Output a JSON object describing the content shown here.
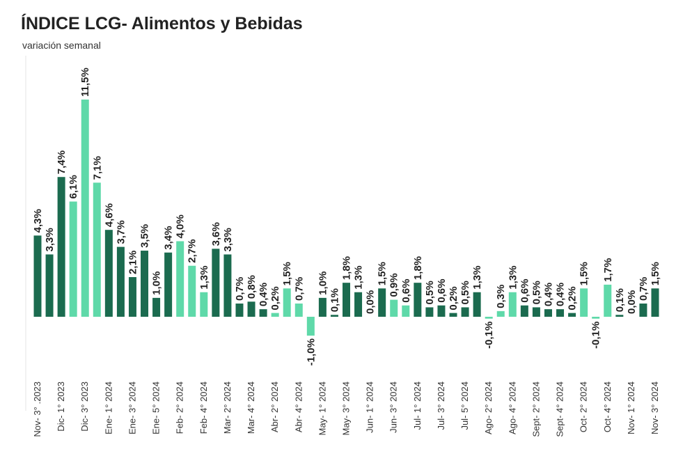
{
  "chart_data": {
    "type": "bar",
    "title": "ÍNDICE LCG- Alimentos y Bebidas",
    "subtitle": "variación semanal",
    "categories": [
      "Nov- 3° .2023",
      null,
      "Dic- 1° 2023",
      null,
      "Dic- 3° 2023",
      null,
      "Ene- 1° 2024",
      null,
      "Ene- 3° 2024",
      null,
      "Ene- 5° 2024",
      null,
      "Feb- 2° 2024",
      null,
      "Feb- 4° 2024",
      null,
      "Mar- 2° 2024",
      null,
      "Mar- 4° 2024",
      null,
      "Abr- 2° 2024",
      null,
      "Abr- 4° 2024",
      null,
      "May- 1° 2024",
      null,
      "May- 3° 2024",
      null,
      "Jun- 1° 2024",
      null,
      "Jun- 3° 2024",
      null,
      "Jul- 1° 2024",
      null,
      "Jul- 3° 2024",
      null,
      "Jul- 5° 2024",
      null,
      "Ago- 2° 2024",
      null,
      "Ago- 4° 2024",
      null,
      "Sept- 2° 2024",
      null,
      "Sept- 4° 2024",
      null,
      "Oct- 2° 2024",
      null,
      "Oct- 4° 2024",
      null,
      "Nov- 1° 2024",
      null,
      "Nov- 3° 2024"
    ],
    "values": [
      4.3,
      3.3,
      7.4,
      6.1,
      11.5,
      7.1,
      4.6,
      3.7,
      2.1,
      3.5,
      1.0,
      3.4,
      4.0,
      2.7,
      1.3,
      3.6,
      3.3,
      0.7,
      0.8,
      0.4,
      0.2,
      1.5,
      0.7,
      -1.0,
      1.0,
      0.1,
      1.8,
      1.3,
      0.0,
      1.5,
      0.9,
      0.6,
      1.8,
      0.5,
      0.6,
      0.2,
      0.5,
      1.3,
      -0.1,
      0.3,
      1.3,
      0.6,
      0.5,
      0.4,
      0.4,
      0.2,
      1.5,
      -0.1,
      1.7,
      0.1,
      0.0,
      0.7,
      1.5
    ],
    "value_labels": [
      "4,3%",
      "3,3%",
      "7,4%",
      "6,1%",
      "11,5%",
      "7,1%",
      "4,6%",
      "3,7%",
      "2,1%",
      "3,5%",
      "1,0%",
      "3,4%",
      "4,0%",
      "2,7%",
      "1,3%",
      "3,6%",
      "3,3%",
      "0,7%",
      "0,8%",
      "0,4%",
      "0,2%",
      "1,5%",
      "0,7%",
      "-1,0%",
      "1,0%",
      "0,1%",
      "1,8%",
      "1,3%",
      "0,0%",
      "1,5%",
      "0,9%",
      "0,6%",
      "1,8%",
      "0,5%",
      "0,6%",
      "0,2%",
      "0,5%",
      "1,3%",
      "-0,1%",
      "0,3%",
      "1,3%",
      "0,6%",
      "0,5%",
      "0,4%",
      "0,4%",
      "0,2%",
      "1,5%",
      "-0,1%",
      "1,7%",
      "0,1%",
      "0,0%",
      "0,7%",
      "1,5%"
    ],
    "colors": [
      "#1b6b4f",
      "#1b6b4f",
      "#1b6b4f",
      "#5fd9a9",
      "#5fd9a9",
      "#5fd9a9",
      "#1b6b4f",
      "#1b6b4f",
      "#1b6b4f",
      "#1b6b4f",
      "#1b6b4f",
      "#1b6b4f",
      "#5fd9a9",
      "#5fd9a9",
      "#5fd9a9",
      "#1b6b4f",
      "#1b6b4f",
      "#1b6b4f",
      "#1b6b4f",
      "#1b6b4f",
      "#5fd9a9",
      "#5fd9a9",
      "#5fd9a9",
      "#5fd9a9",
      "#1b6b4f",
      "#1b6b4f",
      "#1b6b4f",
      "#1b6b4f",
      "#5fd9a9",
      "#1b6b4f",
      "#5fd9a9",
      "#5fd9a9",
      "#1b6b4f",
      "#1b6b4f",
      "#1b6b4f",
      "#1b6b4f",
      "#1b6b4f",
      "#1b6b4f",
      "#5fd9a9",
      "#5fd9a9",
      "#5fd9a9",
      "#1b6b4f",
      "#1b6b4f",
      "#1b6b4f",
      "#1b6b4f",
      "#1b6b4f",
      "#5fd9a9",
      "#5fd9a9",
      "#5fd9a9",
      "#1b6b4f",
      "#5fd9a9",
      "#1b6b4f",
      "#1b6b4f"
    ]
  }
}
